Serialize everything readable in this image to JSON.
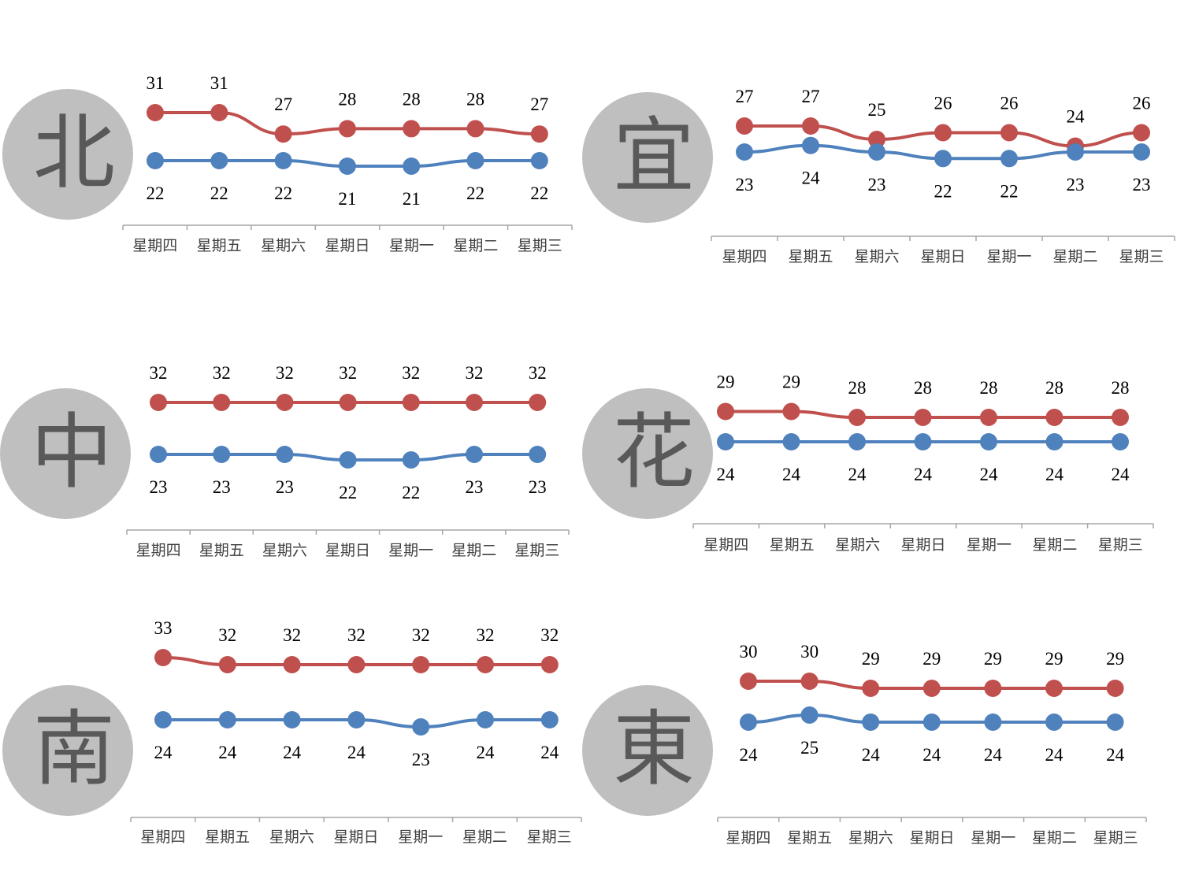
{
  "colors": {
    "high": "#C0504D",
    "low": "#4F81BD",
    "badge": "#BFBFBF",
    "badge_text": "#595959",
    "axis": "#A6A6A6",
    "label": "#000000",
    "tick_label": "#404040"
  },
  "chart_data": [
    {
      "type": "line",
      "region": "北",
      "categories": [
        "星期四",
        "星期五",
        "星期六",
        "星期日",
        "星期一",
        "星期二",
        "星期三"
      ],
      "series": [
        {
          "key": "high",
          "values": [
            31,
            31,
            27,
            28,
            28,
            28,
            27
          ]
        },
        {
          "key": "low",
          "values": [
            22,
            22,
            22,
            21,
            21,
            22,
            22
          ]
        }
      ]
    },
    {
      "type": "line",
      "region": "宜",
      "categories": [
        "星期四",
        "星期五",
        "星期六",
        "星期日",
        "星期一",
        "星期二",
        "星期三"
      ],
      "series": [
        {
          "key": "high",
          "values": [
            27,
            27,
            25,
            26,
            26,
            24,
            26
          ]
        },
        {
          "key": "low",
          "values": [
            23,
            24,
            23,
            22,
            22,
            23,
            23
          ]
        }
      ]
    },
    {
      "type": "line",
      "region": "中",
      "categories": [
        "星期四",
        "星期五",
        "星期六",
        "星期日",
        "星期一",
        "星期二",
        "星期三"
      ],
      "series": [
        {
          "key": "high",
          "values": [
            32,
            32,
            32,
            32,
            32,
            32,
            32
          ]
        },
        {
          "key": "low",
          "values": [
            23,
            23,
            23,
            22,
            22,
            23,
            23
          ]
        }
      ]
    },
    {
      "type": "line",
      "region": "花",
      "categories": [
        "星期四",
        "星期五",
        "星期六",
        "星期日",
        "星期一",
        "星期二",
        "星期三"
      ],
      "series": [
        {
          "key": "high",
          "values": [
            29,
            29,
            28,
            28,
            28,
            28,
            28
          ]
        },
        {
          "key": "low",
          "values": [
            24,
            24,
            24,
            24,
            24,
            24,
            24
          ]
        }
      ]
    },
    {
      "type": "line",
      "region": "南",
      "categories": [
        "星期四",
        "星期五",
        "星期六",
        "星期日",
        "星期一",
        "星期二",
        "星期三"
      ],
      "series": [
        {
          "key": "high",
          "values": [
            33,
            32,
            32,
            32,
            32,
            32,
            32
          ]
        },
        {
          "key": "low",
          "values": [
            24,
            24,
            24,
            24,
            23,
            24,
            24
          ]
        }
      ]
    },
    {
      "type": "line",
      "region": "東",
      "categories": [
        "星期四",
        "星期五",
        "星期六",
        "星期日",
        "星期一",
        "星期二",
        "星期三"
      ],
      "series": [
        {
          "key": "high",
          "values": [
            30,
            30,
            29,
            29,
            29,
            29,
            29
          ]
        },
        {
          "key": "low",
          "values": [
            24,
            25,
            24,
            24,
            24,
            24,
            24
          ]
        }
      ]
    }
  ]
}
